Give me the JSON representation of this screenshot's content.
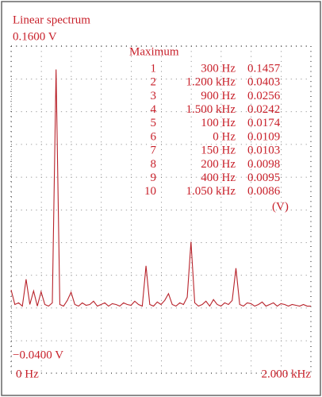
{
  "chart_data": {
    "type": "line",
    "title": "Linear spectrum",
    "x": [
      0,
      25,
      50,
      75,
      100,
      125,
      150,
      175,
      200,
      225,
      250,
      275,
      300,
      325,
      350,
      375,
      400,
      425,
      450,
      475,
      500,
      525,
      550,
      575,
      600,
      625,
      650,
      675,
      700,
      725,
      750,
      775,
      800,
      825,
      850,
      875,
      900,
      925,
      950,
      975,
      1000,
      1025,
      1050,
      1075,
      1100,
      1125,
      1150,
      1175,
      1200,
      1225,
      1250,
      1275,
      1300,
      1325,
      1350,
      1375,
      1400,
      1425,
      1450,
      1475,
      1500,
      1525,
      1550,
      1575,
      1600,
      1625,
      1650,
      1675,
      1700,
      1725,
      1750,
      1775,
      1800,
      1825,
      1850,
      1875,
      1900,
      1925,
      1950,
      1975,
      2000
    ],
    "series": [
      {
        "color": "#b8232b",
        "values": [
          0.0109,
          0.002,
          0.003,
          0.001,
          0.0174,
          0.002,
          0.0103,
          0.001,
          0.0098,
          0.002,
          0.001,
          0.003,
          0.1457,
          0.002,
          0.001,
          0.0045,
          0.0095,
          0.002,
          0.001,
          0.003,
          0.0015,
          0.002,
          0.004,
          0.001,
          0.002,
          0.003,
          0.001,
          0.0025,
          0.002,
          0.001,
          0.003,
          0.002,
          0.0015,
          0.004,
          0.002,
          0.001,
          0.0256,
          0.002,
          0.001,
          0.0035,
          0.002,
          0.0045,
          0.0086,
          0.002,
          0.001,
          0.003,
          0.002,
          0.0065,
          0.0403,
          0.003,
          0.001,
          0.002,
          0.004,
          0.001,
          0.005,
          0.002,
          0.001,
          0.003,
          0.002,
          0.0045,
          0.0242,
          0.002,
          0.001,
          0.003,
          0.0025,
          0.001,
          0.002,
          0.0035,
          0.001,
          0.002,
          0.003,
          0.001,
          0.0025,
          0.002,
          0.001,
          0.002,
          0.0015,
          0.001,
          0.002,
          0.001,
          0.001
        ]
      }
    ],
    "xlim": [
      0,
      2000
    ],
    "ylim": [
      -0.04,
      0.16
    ],
    "xticks": [
      {
        "value": 0,
        "label": "0 Hz"
      },
      {
        "value": 2000,
        "label": "2.000 kHz"
      }
    ],
    "yticks": [
      {
        "value": 0.16,
        "label": "0.1600 V"
      },
      {
        "value": -0.04,
        "label": "−0.0400 V"
      }
    ],
    "grid": true,
    "maximum": {
      "title": "Maximum",
      "unit": "(V)",
      "rows": [
        {
          "rank": 1,
          "frequency": "300 Hz",
          "value": 0.1457
        },
        {
          "rank": 2,
          "frequency": "1.200 kHz",
          "value": 0.0403
        },
        {
          "rank": 3,
          "frequency": "900 Hz",
          "value": 0.0256
        },
        {
          "rank": 4,
          "frequency": "1.500 kHz",
          "value": 0.0242
        },
        {
          "rank": 5,
          "frequency": "100 Hz",
          "value": 0.0174
        },
        {
          "rank": 6,
          "frequency": "0 Hz",
          "value": 0.0109
        },
        {
          "rank": 7,
          "frequency": "150 Hz",
          "value": 0.0103
        },
        {
          "rank": 8,
          "frequency": "200 Hz",
          "value": 0.0098
        },
        {
          "rank": 9,
          "frequency": "400 Hz",
          "value": 0.0095
        },
        {
          "rank": 10,
          "frequency": "1.050 kHz",
          "value": 0.0086
        }
      ]
    }
  }
}
